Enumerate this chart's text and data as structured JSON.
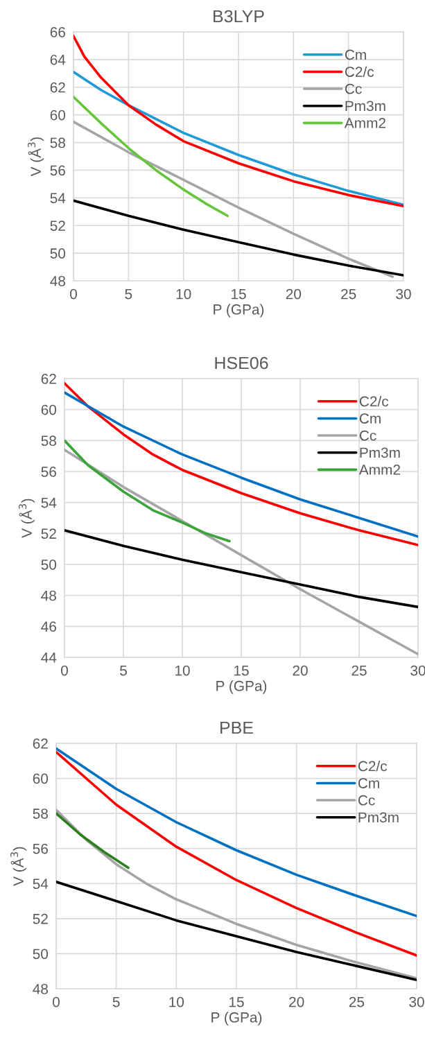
{
  "chart_data": [
    {
      "type": "line",
      "title": "B3LYP",
      "xlabel": "P (GPa)",
      "ylabel": "V (Å$^{3}$)",
      "xlim": [
        0,
        30
      ],
      "xticks": [
        0,
        5,
        10,
        15,
        20,
        25,
        30
      ],
      "ylim": [
        48,
        66
      ],
      "yticks": [
        48,
        50,
        52,
        54,
        56,
        58,
        60,
        62,
        64,
        66
      ],
      "grid": true,
      "legend": "top right",
      "marker": "none",
      "series": [
        {
          "name": "Cm",
          "color": "#1e9ad6",
          "x": [
            0,
            2.5,
            5,
            10,
            15,
            20,
            25,
            30
          ],
          "values": [
            63.1,
            61.8,
            60.7,
            58.7,
            57.1,
            55.7,
            54.5,
            53.5
          ]
        },
        {
          "name": "C2/c",
          "color": "#ff0000",
          "x": [
            0,
            1,
            2.5,
            5,
            7.5,
            10,
            15,
            20,
            25,
            30
          ],
          "values": [
            65.7,
            64.2,
            62.7,
            60.7,
            59.3,
            58.1,
            56.5,
            55.2,
            54.2,
            53.4
          ]
        },
        {
          "name": "Cc",
          "color": "#a5a5a5",
          "x": [
            0,
            5,
            10,
            15,
            20,
            25,
            29
          ],
          "values": [
            59.5,
            57.3,
            55.3,
            53.3,
            51.4,
            49.6,
            48.3
          ]
        },
        {
          "name": "Pm3m",
          "color": "#000000",
          "x": [
            0,
            5,
            10,
            15,
            20,
            25,
            30
          ],
          "values": [
            53.8,
            52.7,
            51.7,
            50.8,
            49.9,
            49.1,
            48.4
          ]
        },
        {
          "name": "Amm2",
          "color": "#66c53a",
          "x": [
            0,
            2.5,
            5,
            7.5,
            10,
            12,
            14
          ],
          "values": [
            61.3,
            59.4,
            57.6,
            56.0,
            54.6,
            53.6,
            52.7
          ]
        }
      ]
    },
    {
      "type": "line",
      "title": "HSE06",
      "xlabel": "P (GPa)",
      "ylabel": "V (Å$^{3}$)",
      "xlim": [
        0,
        30
      ],
      "xticks": [
        0,
        5,
        10,
        15,
        20,
        25,
        30
      ],
      "ylim": [
        44,
        62
      ],
      "yticks": [
        44,
        46,
        48,
        50,
        52,
        54,
        56,
        58,
        60,
        62
      ],
      "grid": true,
      "legend": "top right",
      "marker": "none",
      "series": [
        {
          "name": "C2/c",
          "color": "#ff0000",
          "x": [
            0,
            2,
            5,
            7.5,
            10,
            15,
            20,
            25,
            30
          ],
          "values": [
            61.7,
            60.2,
            58.4,
            57.1,
            56.1,
            54.6,
            53.3,
            52.2,
            51.25
          ]
        },
        {
          "name": "Cm",
          "color": "#0070c0",
          "x": [
            0,
            5,
            10,
            15,
            20,
            25,
            30
          ],
          "values": [
            61.1,
            58.9,
            57.1,
            55.6,
            54.2,
            53.0,
            51.8
          ]
        },
        {
          "name": "Cc",
          "color": "#a5a5a5",
          "x": [
            0,
            5,
            10,
            15,
            20,
            25,
            30
          ],
          "values": [
            57.4,
            55.0,
            52.8,
            50.6,
            48.4,
            46.3,
            44.2
          ]
        },
        {
          "name": "Pm3m",
          "color": "#000000",
          "x": [
            0,
            5,
            10,
            15,
            20,
            25,
            30
          ],
          "values": [
            52.2,
            51.2,
            50.3,
            49.5,
            48.7,
            47.9,
            47.25
          ]
        },
        {
          "name": "Amm2",
          "color": "#3ba33a",
          "x": [
            0,
            2,
            5,
            7.5,
            10,
            12,
            14
          ],
          "values": [
            58.0,
            56.4,
            54.7,
            53.5,
            52.7,
            52.0,
            51.5
          ]
        }
      ]
    },
    {
      "type": "line",
      "title": "PBE",
      "xlabel": "P (GPa)",
      "ylabel": "V (Å$^{3}$)",
      "xlim": [
        0,
        30
      ],
      "xticks": [
        0,
        5,
        10,
        15,
        20,
        25,
        30
      ],
      "ylim": [
        48,
        62
      ],
      "yticks": [
        48,
        50,
        52,
        54,
        56,
        58,
        60,
        62
      ],
      "grid": true,
      "legend": "top right",
      "marker": "none",
      "series": [
        {
          "name": "C2/c",
          "color": "#ff0000",
          "x": [
            0,
            5,
            10,
            15,
            20,
            25,
            30
          ],
          "values": [
            61.5,
            58.5,
            56.1,
            54.2,
            52.6,
            51.2,
            49.9
          ]
        },
        {
          "name": "Cm",
          "color": "#0070c0",
          "x": [
            0,
            5,
            10,
            15,
            20,
            25,
            30
          ],
          "values": [
            61.7,
            59.4,
            57.5,
            55.9,
            54.5,
            53.3,
            52.15
          ]
        },
        {
          "name": "Cc",
          "color": "#a5a5a5",
          "x": [
            0,
            2.5,
            5,
            7.5,
            10,
            15,
            20,
            25,
            30
          ],
          "values": [
            58.2,
            56.5,
            55.1,
            54.0,
            53.1,
            51.7,
            50.5,
            49.5,
            48.6
          ]
        },
        {
          "name": "Pm3m",
          "color": "#000000",
          "x": [
            0,
            5,
            10,
            15,
            20,
            25,
            30
          ],
          "values": [
            54.1,
            53.0,
            51.9,
            51.0,
            50.1,
            49.3,
            48.5
          ]
        },
        {
          "color": "#2e7d1f",
          "x": [
            0,
            2,
            4,
            6
          ],
          "values": [
            58.0,
            56.8,
            55.8,
            54.9
          ]
        }
      ]
    }
  ]
}
